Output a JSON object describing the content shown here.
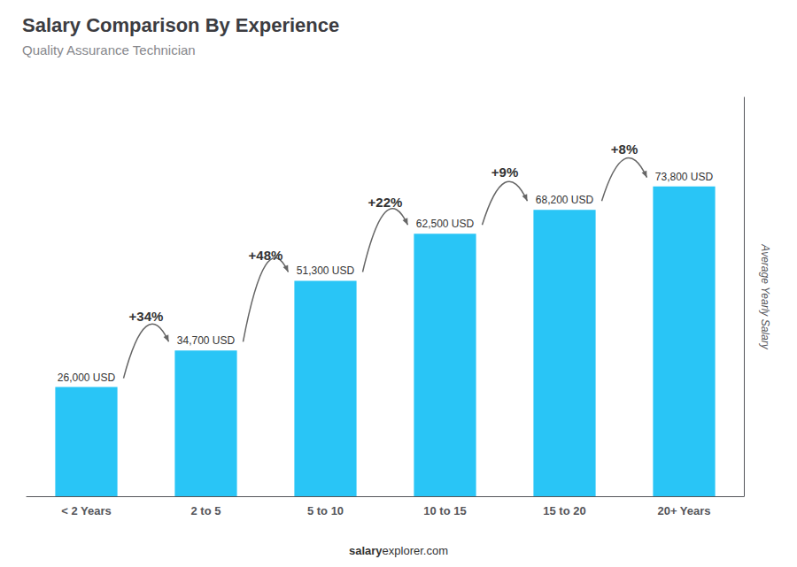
{
  "chart_data": {
    "type": "bar",
    "title": "Salary Comparison By Experience",
    "subtitle": "Quality Assurance Technician",
    "y_label": "Average Yearly Salary",
    "categories": [
      "< 2 Years",
      "2 to 5",
      "5 to 10",
      "10 to 15",
      "15 to 20",
      "20+ Years"
    ],
    "values": [
      26000,
      34700,
      51300,
      62500,
      68200,
      73800
    ],
    "value_labels": [
      "26,000 USD",
      "34,700 USD",
      "51,300 USD",
      "62,500 USD",
      "68,200 USD",
      "73,800 USD"
    ],
    "data_labels": true,
    "annotations": [
      "+34%",
      "+48%",
      "+22%",
      "+9%",
      "+8%",
      "salary",
      "explorer.com"
    ],
    "color": "#29c5f6",
    "ylim": [
      0,
      95000
    ],
    "grid": false,
    "tick_labels": "x"
  }
}
